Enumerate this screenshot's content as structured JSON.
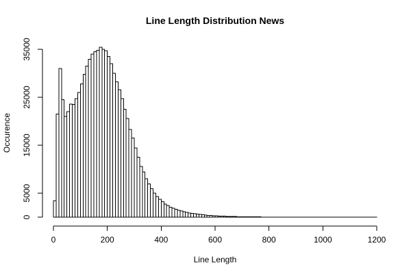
{
  "chart_data": {
    "type": "bar",
    "title": "Line Length Distribution News",
    "xlabel": "Line Length",
    "ylabel": "Occurence",
    "xlim": [
      0,
      1200
    ],
    "ylim": [
      0,
      35000
    ],
    "bin_width": 10,
    "x_ticks": [
      0,
      200,
      400,
      600,
      800,
      1000,
      1200
    ],
    "y_ticks": [
      0,
      5000,
      15000,
      25000,
      35000
    ],
    "x": [
      0,
      10,
      20,
      30,
      40,
      50,
      60,
      70,
      80,
      90,
      100,
      110,
      120,
      130,
      140,
      150,
      160,
      170,
      180,
      190,
      200,
      210,
      220,
      230,
      240,
      250,
      260,
      270,
      280,
      290,
      300,
      310,
      320,
      330,
      340,
      350,
      360,
      370,
      380,
      390,
      400,
      410,
      420,
      430,
      440,
      450,
      460,
      470,
      480,
      490,
      500,
      510,
      520,
      530,
      540,
      550,
      560,
      570,
      580,
      590,
      600,
      610,
      620,
      630,
      640,
      650,
      660,
      670,
      680,
      690,
      700,
      710,
      720,
      730,
      740,
      750,
      760,
      770,
      780,
      790,
      800,
      810,
      820,
      830,
      840,
      850,
      860,
      870,
      880,
      890,
      900,
      910,
      920,
      930,
      940,
      950,
      960,
      970,
      980,
      990,
      1000,
      1010,
      1020,
      1030,
      1040,
      1050,
      1060,
      1070,
      1080,
      1090,
      1100,
      1110,
      1120,
      1130,
      1140,
      1150,
      1160,
      1170,
      1180,
      1190
    ],
    "values": [
      3400,
      21500,
      31000,
      24500,
      21000,
      22000,
      23600,
      23500,
      24700,
      26000,
      27800,
      29800,
      31500,
      32900,
      34000,
      34500,
      34800,
      35400,
      35000,
      34700,
      33500,
      32000,
      30000,
      28200,
      26600,
      24700,
      22500,
      20600,
      18300,
      16500,
      14400,
      12500,
      10600,
      9400,
      8000,
      6900,
      5900,
      5000,
      4300,
      3700,
      3200,
      2750,
      2400,
      2100,
      1850,
      1650,
      1450,
      1280,
      1130,
      1000,
      880,
      780,
      700,
      620,
      550,
      480,
      420,
      370,
      330,
      290,
      260,
      230,
      200,
      180,
      160,
      140,
      125,
      110,
      100,
      90,
      80,
      70,
      62,
      55,
      49,
      44,
      39,
      35,
      31,
      28,
      25,
      22,
      20,
      18,
      16,
      14,
      13,
      12,
      11,
      10,
      9,
      8,
      7,
      7,
      6,
      6,
      5,
      5,
      5,
      4,
      4,
      4,
      4,
      3,
      3,
      3,
      3,
      3,
      2,
      2,
      2,
      2,
      2,
      2,
      2,
      2,
      2,
      1,
      1,
      1
    ]
  }
}
